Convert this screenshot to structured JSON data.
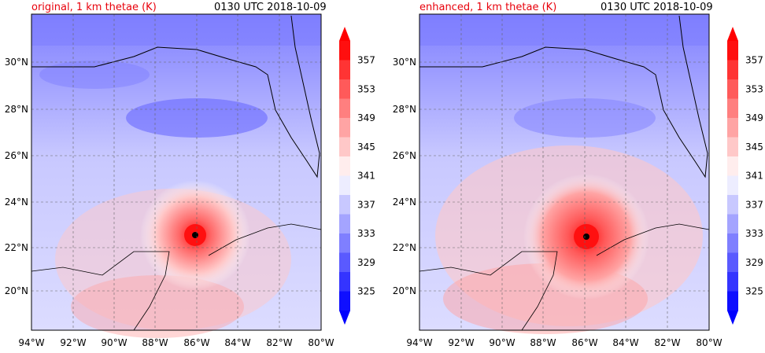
{
  "panels": [
    {
      "title_left": "original, 1 km thetae (K)",
      "title_right": "0130 UTC 2018-10-09"
    },
    {
      "title_left": "enhanced, 1 km thetae (K)",
      "title_right": "0130 UTC 2018-10-09"
    }
  ],
  "axes": {
    "lon_labels": [
      "94°W",
      "92°W",
      "90°W",
      "88°W",
      "86°W",
      "84°W",
      "82°W",
      "80°W"
    ],
    "lat_labels": [
      "20°N",
      "22°N",
      "24°N",
      "26°N",
      "28°N",
      "30°N"
    ]
  },
  "colorbar": {
    "labels": [
      "357",
      "353",
      "349",
      "345",
      "341",
      "337",
      "333",
      "329",
      "325"
    ],
    "colors": [
      "#ff0f0f",
      "#ff3434",
      "#ff5a5a",
      "#ff7f7f",
      "#ffa4a4",
      "#ffc8c8",
      "#ffeded",
      "#ededff",
      "#c8c8ff",
      "#a4a4ff",
      "#7f7fff",
      "#5a5aff",
      "#3434ff",
      "#0f0fff"
    ],
    "extend_top": "#ff0000",
    "extend_bottom": "#0000ff"
  },
  "storm_marker": "black-dot"
}
